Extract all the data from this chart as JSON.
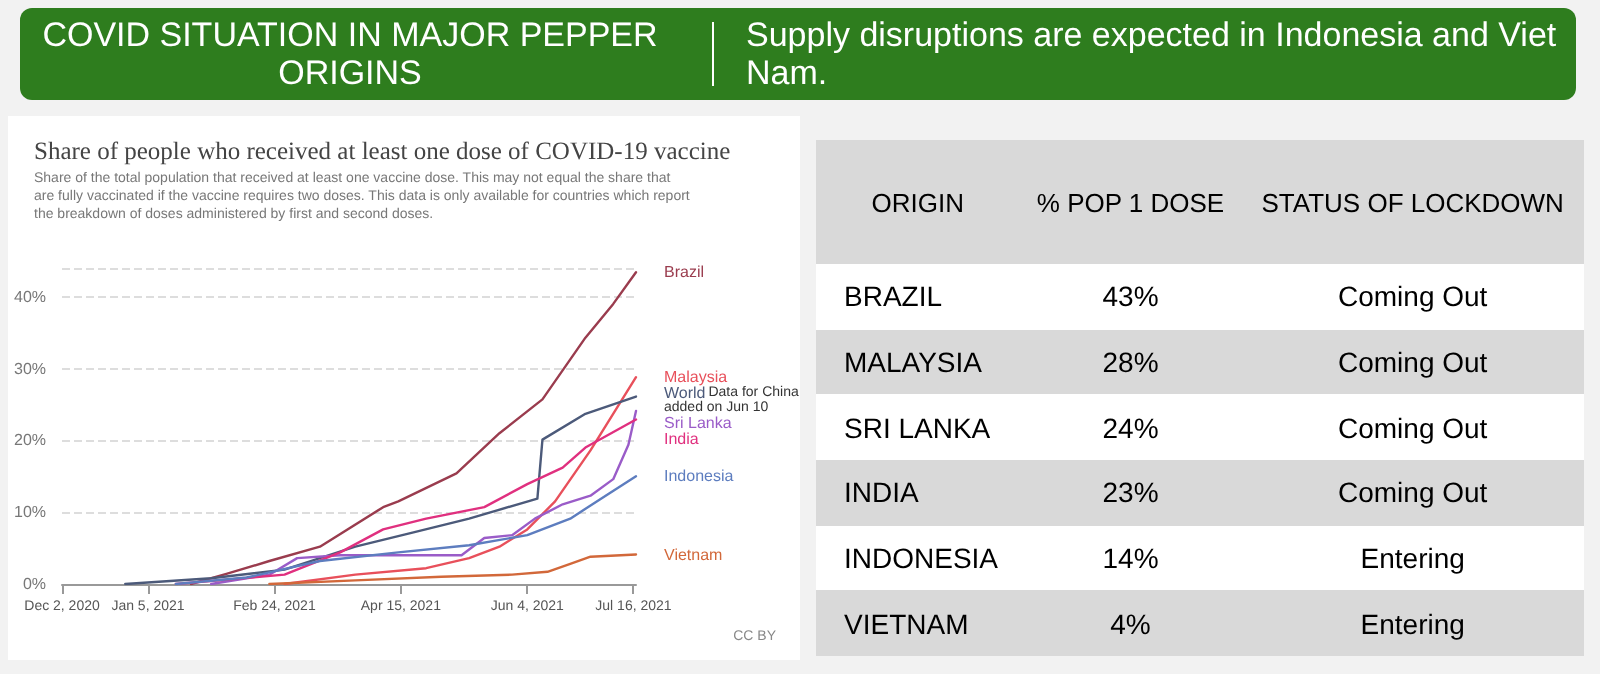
{
  "chart_data": [
    {
      "type": "other",
      "title": "COVID SITUATION IN MAJOR PEPPER ORIGINS",
      "subtitle": "Supply disruptions are expected in Indonesia and Viet Nam."
    },
    {
      "type": "line",
      "title": "Share of people who received at least one dose of COVID-19 vaccine",
      "subtitle": "Share of the total population that received at least one vaccine dose. This may not equal the share that are fully vaccinated if the vaccine requires two doses. This data is only available for countries which report the breakdown of doses administered by first and second doses.",
      "xlim": [
        "2020-12-02",
        "2021-07-17"
      ],
      "xticks": [
        {
          "value": "2020-12-02",
          "label": "Dec 2, 2020"
        },
        {
          "value": "2021-01-05",
          "label": "Jan 5, 2021"
        },
        {
          "value": "2021-02-24",
          "label": "Feb 24, 2021"
        },
        {
          "value": "2021-04-15",
          "label": "Apr 15, 2021"
        },
        {
          "value": "2021-06-04",
          "label": "Jun 4, 2021"
        },
        {
          "value": "2021-07-16",
          "label": "Jul 16, 2021"
        }
      ],
      "ylim": [
        0,
        44
      ],
      "yticks": [
        {
          "value": 0,
          "label": "0%"
        },
        {
          "value": 10,
          "label": "10%"
        },
        {
          "value": 20,
          "label": "20%"
        },
        {
          "value": 30,
          "label": "30%"
        },
        {
          "value": 40,
          "label": "40%"
        }
      ],
      "grid": "y",
      "marker": "none",
      "line_style": "solid",
      "legend": false,
      "series": [
        {
          "name": "Brazil",
          "color": "#9a3c4e",
          "x": [
            "2021-01-22",
            "2021-02-05",
            "2021-02-22",
            "2021-03-14",
            "2021-04-08",
            "2021-04-14",
            "2021-05-07",
            "2021-05-24",
            "2021-06-10",
            "2021-06-27",
            "2021-07-08",
            "2021-07-17"
          ],
          "values": [
            0,
            1.4,
            3.2,
            5.2,
            10.7,
            11.5,
            15.4,
            21,
            25.7,
            34.3,
            39,
            43.4
          ]
        },
        {
          "name": "Malaysia",
          "color": "#e8505b",
          "x": [
            "2021-02-28",
            "2021-03-28",
            "2021-04-25",
            "2021-05-12",
            "2021-05-24",
            "2021-06-04",
            "2021-06-15",
            "2021-06-29",
            "2021-07-17"
          ],
          "values": [
            0,
            1.3,
            2.2,
            3.6,
            5.2,
            7.6,
            11.5,
            18.6,
            28.8
          ]
        },
        {
          "name": "World",
          "color": "#4c5a7a",
          "x": [
            "2020-12-27",
            "2021-01-30",
            "2021-02-28",
            "2021-03-28",
            "2021-04-20",
            "2021-05-12",
            "2021-06-08",
            "2021-06-10",
            "2021-06-27",
            "2021-07-17"
          ],
          "values": [
            0,
            0.8,
            2,
            5.2,
            7.2,
            9.1,
            11.9,
            20.1,
            23.7,
            26.1
          ]
        },
        {
          "name": "Sri Lanka",
          "color": "#9a5cc8",
          "x": [
            "2021-01-30",
            "2021-02-22",
            "2021-03-05",
            "2021-03-22",
            "2021-05-09",
            "2021-05-18",
            "2021-05-29",
            "2021-06-07",
            "2021-06-18",
            "2021-06-29",
            "2021-07-08",
            "2021-07-14",
            "2021-07-17"
          ],
          "values": [
            0,
            1.3,
            3.6,
            4,
            4,
            6.4,
            6.8,
            9.1,
            11.1,
            12.3,
            14.6,
            19.4,
            24.1
          ]
        },
        {
          "name": "India",
          "color": "#e0307f",
          "x": [
            "2021-01-16",
            "2021-02-28",
            "2021-03-22",
            "2021-04-08",
            "2021-04-25",
            "2021-05-18",
            "2021-06-04",
            "2021-06-18",
            "2021-06-27",
            "2021-07-17"
          ],
          "values": [
            0,
            1.3,
            4.4,
            7.6,
            9.1,
            10.7,
            13.9,
            16.2,
            19,
            22.9
          ]
        },
        {
          "name": "Indonesia",
          "color": "#5d7dbf",
          "x": [
            "2021-01-16",
            "2021-02-13",
            "2021-03-14",
            "2021-04-14",
            "2021-05-12",
            "2021-06-04",
            "2021-06-21",
            "2021-07-05",
            "2021-07-17"
          ],
          "values": [
            0,
            0.9,
            3.2,
            4.4,
            5.4,
            6.8,
            9.1,
            12.3,
            15
          ]
        },
        {
          "name": "Vietnam",
          "color": "#d2683a",
          "x": [
            "2021-02-22",
            "2021-03-28",
            "2021-05-01",
            "2021-05-29",
            "2021-06-12",
            "2021-06-21",
            "2021-06-29",
            "2021-07-17"
          ],
          "values": [
            0,
            0.5,
            1,
            1.3,
            1.7,
            2.8,
            3.8,
            4.1
          ]
        }
      ],
      "annotations": [
        {
          "text": "Data for China added on Jun 10",
          "x": "2021-07-17",
          "y": 26.1
        },
        "CC BY"
      ]
    },
    {
      "type": "other",
      "categories": [
        "ORIGIN",
        "% POP 1 DOSE",
        "STATUS OF LOCKDOWN"
      ],
      "y_categories": [
        "BRAZIL",
        "MALAYSIA",
        "SRI LANKA",
        "INDIA",
        "INDONESIA",
        "VIETNAM"
      ],
      "cell_labels": [
        [
          "43%",
          "Coming Out"
        ],
        [
          "28%",
          "Coming Out"
        ],
        [
          "24%",
          "Coming Out"
        ],
        [
          "23%",
          "Coming Out"
        ],
        [
          "14%",
          "Entering"
        ],
        [
          "4%",
          "Entering"
        ]
      ]
    }
  ]
}
